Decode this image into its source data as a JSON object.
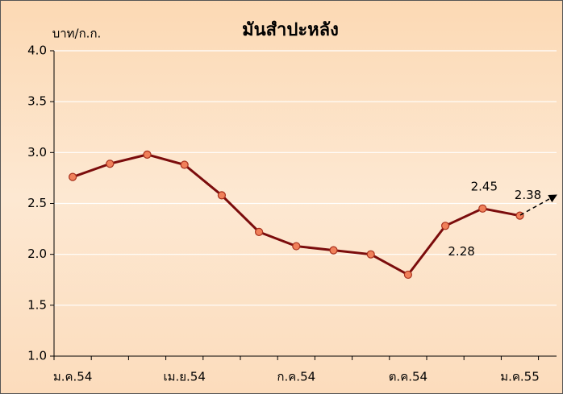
{
  "chart_data": {
    "type": "line",
    "title": "มันสำปะหลัง",
    "y_axis_label": "บาท/ก.ก.",
    "categories": [
      "ม.ค.54",
      null,
      null,
      "เม.ย.54",
      null,
      null,
      "ก.ค.54",
      null,
      null,
      "ต.ค.54",
      null,
      null,
      "ม.ค.55"
    ],
    "series": [
      {
        "name": "มันสำปะหลัง",
        "color": "#7b0c0c",
        "values": [
          2.76,
          2.89,
          2.98,
          2.88,
          2.58,
          2.22,
          2.08,
          2.04,
          2.0,
          1.8,
          2.28,
          2.45,
          2.38
        ],
        "value_labels": [
          null,
          null,
          null,
          null,
          null,
          null,
          null,
          null,
          null,
          null,
          "2.28",
          "2.45",
          "2.38"
        ]
      }
    ],
    "ylim": [
      1.0,
      4.0
    ],
    "yticks": [
      {
        "value": 1.0,
        "label": "1.0"
      },
      {
        "value": 1.5,
        "label": "1.5"
      },
      {
        "value": 2.0,
        "label": "2.0"
      },
      {
        "value": 2.5,
        "label": "2.5"
      },
      {
        "value": 3.0,
        "label": "3.0"
      },
      {
        "value": 3.5,
        "label": "3.5"
      },
      {
        "value": 4.0,
        "label": "4.0"
      }
    ],
    "grid": true
  }
}
